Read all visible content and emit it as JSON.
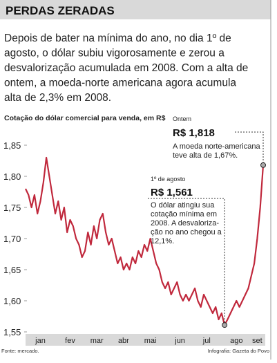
{
  "header": {
    "title": "PERDAS ZERADAS",
    "lines": [
      "Depois de bater na mínima do ano, no dia 1º de",
      "agosto, o dólar subiu vigorosamente e zerou a",
      "desvalorização acumulada em 2008. Com a alta de",
      "ontem, a moeda-norte americana agora acumula",
      "alta de 2,3% em 2008."
    ]
  },
  "chart_data": {
    "type": "line",
    "subtitle": "Cotação do dólar comercial para venda, em R$",
    "categories": [
      null,
      null,
      null,
      null,
      null,
      "jan",
      null,
      null,
      null,
      null,
      null,
      null,
      null,
      null,
      null,
      "fev",
      null,
      null,
      null,
      null,
      null,
      null,
      null,
      null,
      "mar",
      null,
      null,
      null,
      null,
      null,
      null,
      null,
      null,
      "abr",
      null,
      null,
      null,
      null,
      null,
      null,
      null,
      null,
      "mai",
      null,
      null,
      null,
      null,
      null,
      null,
      null,
      null,
      null,
      "jun",
      null,
      null,
      null,
      null,
      null,
      null,
      null,
      null,
      "jul",
      null,
      null,
      null,
      null,
      null,
      null,
      null,
      null,
      null,
      "ago",
      null,
      null,
      null,
      null,
      null,
      null,
      "set",
      null,
      null
    ],
    "values": [
      1.78,
      1.77,
      1.75,
      1.77,
      1.74,
      1.76,
      1.79,
      1.83,
      1.8,
      1.77,
      1.74,
      1.76,
      1.73,
      1.75,
      1.71,
      1.73,
      1.72,
      1.7,
      1.69,
      1.67,
      1.68,
      1.71,
      1.69,
      1.72,
      1.7,
      1.73,
      1.74,
      1.71,
      1.69,
      1.7,
      1.68,
      1.66,
      1.67,
      1.65,
      1.66,
      1.65,
      1.67,
      1.66,
      1.68,
      1.67,
      1.69,
      1.68,
      1.7,
      1.68,
      1.66,
      1.65,
      1.63,
      1.62,
      1.63,
      1.61,
      1.62,
      1.63,
      1.61,
      1.6,
      1.61,
      1.6,
      1.61,
      1.62,
      1.6,
      1.59,
      1.61,
      1.6,
      1.59,
      1.58,
      1.59,
      1.57,
      1.58,
      1.561,
      1.57,
      1.58,
      1.59,
      1.6,
      1.59,
      1.6,
      1.61,
      1.62,
      1.64,
      1.66,
      1.7,
      1.75,
      1.818
    ],
    "color": "#c0283c",
    "ylim": [
      1.55,
      1.85
    ],
    "yticks": [
      {
        "value": 1.55,
        "label": "1,55"
      },
      {
        "value": 1.6,
        "label": "1,60"
      },
      {
        "value": 1.65,
        "label": "1,65"
      },
      {
        "value": 1.7,
        "label": "1,70"
      },
      {
        "value": 1.75,
        "label": "1,75"
      },
      {
        "value": 1.8,
        "label": "1,80"
      },
      {
        "value": 1.85,
        "label": "1,85"
      }
    ],
    "grid": false,
    "annotations": [
      {
        "index": 67,
        "heading": "1º de agosto",
        "label": "R$ 1,561",
        "lines": [
          "O dólar atingiu sua",
          "cotação mínima em",
          "2008. A desvaloriza-",
          "ção no ano chegou a",
          "12,1%."
        ]
      },
      {
        "index": 80,
        "heading": "Ontem",
        "label": "R$ 1,818",
        "lines": [
          "A moeda norte-americana",
          "teve alta de 1,67%."
        ]
      }
    ]
  },
  "footer": {
    "source": "Fonte: mercado.",
    "credit": "Infografia: Gazeta do Povo"
  }
}
